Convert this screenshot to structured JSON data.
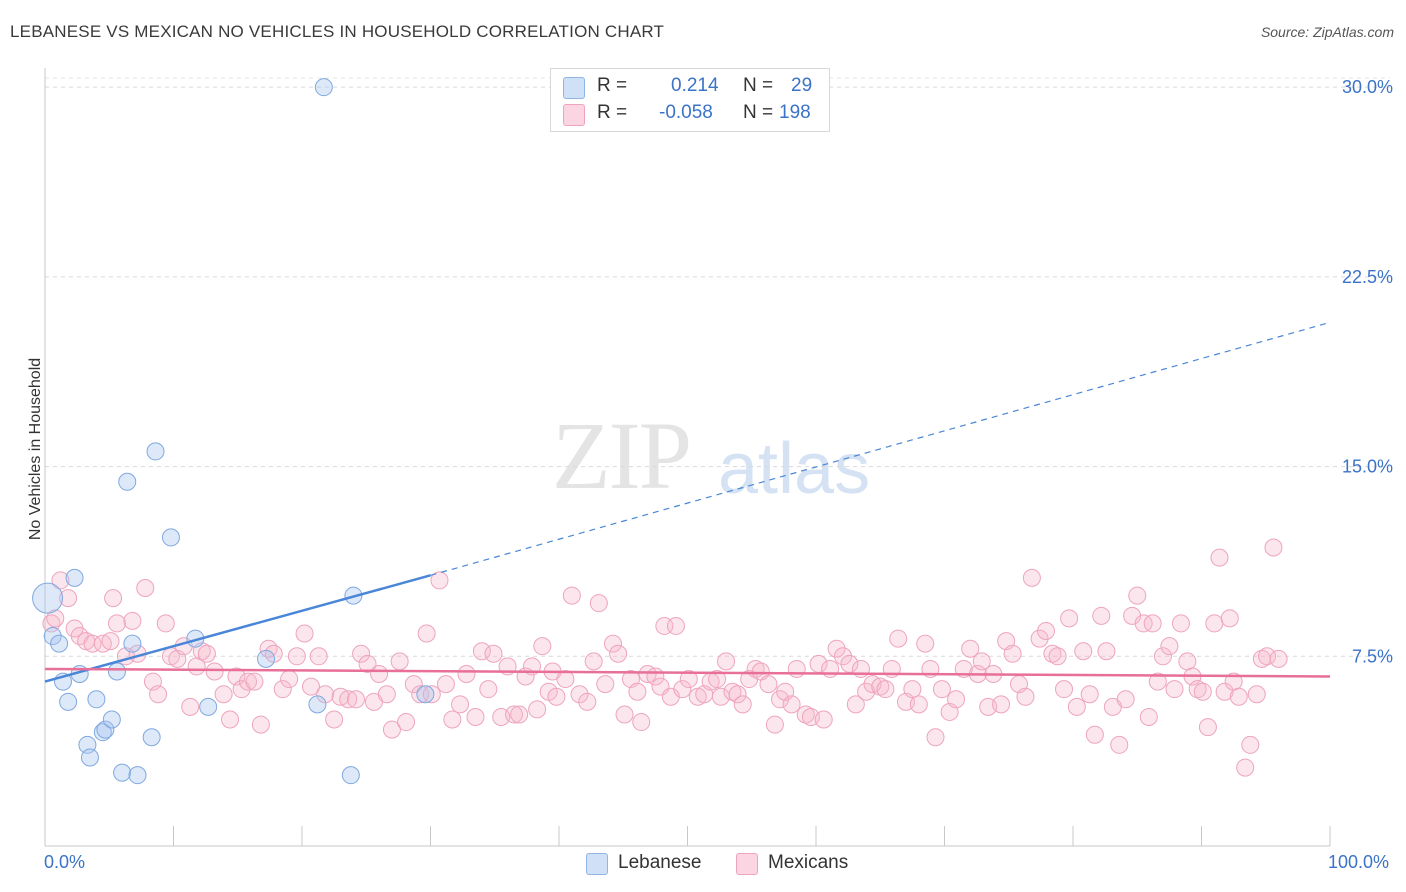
{
  "title": "LEBANESE VS MEXICAN NO VEHICLES IN HOUSEHOLD CORRELATION CHART",
  "source": "Source: ZipAtlas.com",
  "watermark": {
    "part1": "ZIP",
    "part2": "atlas"
  },
  "legend": {
    "rows": [
      {
        "r_label": "R =",
        "r_value": "0.214",
        "n_label": "N =",
        "n_value": "29",
        "color": "#a9c6f0"
      },
      {
        "r_label": "R =",
        "r_value": "-0.058",
        "n_label": "N =",
        "n_value": "198",
        "color": "#f6b8cc"
      }
    ]
  },
  "bottom_legend": [
    {
      "label": "Lebanese",
      "color": "#a9c6f0"
    },
    {
      "label": "Mexicans",
      "color": "#f6b8cc"
    }
  ],
  "chart_data": {
    "type": "scatter",
    "title": "LEBANESE VS MEXICAN NO VEHICLES IN HOUSEHOLD CORRELATION CHART",
    "xlabel": "",
    "ylabel": "No Vehicles in Household",
    "xlim": [
      0,
      100
    ],
    "ylim": [
      0,
      30.6
    ],
    "x_tick_labels": [
      "0.0%",
      "100.0%"
    ],
    "y_ticks": [
      7.5,
      15.0,
      22.5,
      30.0
    ],
    "y_tick_labels": [
      "7.5%",
      "15.0%",
      "22.5%",
      "30.0%"
    ],
    "grid": "horizontal dashed",
    "colors": {
      "lebanese": "#4a86d8",
      "mexicans": "#e86f98",
      "tick_label": "#3b73c8"
    },
    "series": [
      {
        "name": "Lebanese",
        "points": [
          [
            0.2,
            9.8
          ],
          [
            0.6,
            8.3
          ],
          [
            1.1,
            8.0
          ],
          [
            1.4,
            6.5
          ],
          [
            1.8,
            5.7
          ],
          [
            2.3,
            10.6
          ],
          [
            2.7,
            6.8
          ],
          [
            3.3,
            4.0
          ],
          [
            3.5,
            3.5
          ],
          [
            4.0,
            5.8
          ],
          [
            4.5,
            4.5
          ],
          [
            4.7,
            4.6
          ],
          [
            5.2,
            5.0
          ],
          [
            5.6,
            6.9
          ],
          [
            6.0,
            2.9
          ],
          [
            6.4,
            14.4
          ],
          [
            6.8,
            8.0
          ],
          [
            7.2,
            2.8
          ],
          [
            8.3,
            4.3
          ],
          [
            8.6,
            15.6
          ],
          [
            9.8,
            12.2
          ],
          [
            11.7,
            8.2
          ],
          [
            12.7,
            5.5
          ],
          [
            17.2,
            7.4
          ],
          [
            21.2,
            5.6
          ],
          [
            21.7,
            30.0
          ],
          [
            23.8,
            2.8
          ],
          [
            24.0,
            9.9
          ],
          [
            29.6,
            6.0
          ]
        ],
        "trend": {
          "x0": 0,
          "y0": 6.5,
          "x1": 30,
          "y1": 10.7,
          "dashed_to_x": 100,
          "dashed_to_y": 20.7
        }
      },
      {
        "name": "Mexicans",
        "points": [
          [
            0.5,
            8.8
          ],
          [
            0.8,
            9.0
          ],
          [
            1.2,
            10.5
          ],
          [
            1.8,
            9.8
          ],
          [
            2.3,
            8.6
          ],
          [
            2.7,
            8.3
          ],
          [
            3.2,
            8.1
          ],
          [
            3.7,
            8.0
          ],
          [
            4.5,
            8.0
          ],
          [
            5.1,
            8.1
          ],
          [
            5.3,
            9.8
          ],
          [
            5.6,
            8.8
          ],
          [
            6.3,
            7.5
          ],
          [
            6.8,
            8.9
          ],
          [
            7.2,
            7.6
          ],
          [
            7.8,
            10.2
          ],
          [
            8.4,
            6.5
          ],
          [
            8.8,
            6.0
          ],
          [
            9.4,
            8.8
          ],
          [
            9.8,
            7.5
          ],
          [
            10.3,
            7.4
          ],
          [
            10.8,
            7.9
          ],
          [
            11.3,
            5.5
          ],
          [
            11.8,
            7.1
          ],
          [
            12.2,
            7.7
          ],
          [
            12.6,
            7.6
          ],
          [
            13.2,
            6.9
          ],
          [
            13.9,
            6.0
          ],
          [
            14.4,
            5.0
          ],
          [
            14.9,
            6.7
          ],
          [
            15.3,
            6.2
          ],
          [
            15.8,
            6.5
          ],
          [
            16.3,
            6.5
          ],
          [
            16.8,
            4.8
          ],
          [
            17.4,
            7.8
          ],
          [
            17.8,
            7.6
          ],
          [
            18.5,
            6.2
          ],
          [
            19.0,
            6.6
          ],
          [
            19.6,
            7.5
          ],
          [
            20.2,
            8.4
          ],
          [
            20.7,
            6.3
          ],
          [
            21.3,
            7.5
          ],
          [
            21.8,
            6.0
          ],
          [
            22.5,
            5.0
          ],
          [
            23.0,
            5.9
          ],
          [
            23.6,
            5.8
          ],
          [
            24.2,
            5.8
          ],
          [
            24.6,
            7.6
          ],
          [
            25.1,
            7.2
          ],
          [
            25.6,
            5.7
          ],
          [
            26.0,
            6.8
          ],
          [
            26.6,
            6.0
          ],
          [
            27.0,
            4.6
          ],
          [
            27.6,
            7.3
          ],
          [
            28.1,
            4.9
          ],
          [
            28.7,
            6.4
          ],
          [
            29.2,
            6.0
          ],
          [
            29.7,
            8.4
          ],
          [
            30.1,
            6.0
          ],
          [
            30.7,
            10.5
          ],
          [
            31.2,
            6.4
          ],
          [
            31.7,
            5.0
          ],
          [
            32.3,
            5.6
          ],
          [
            32.8,
            6.8
          ],
          [
            33.5,
            5.1
          ],
          [
            34.0,
            7.7
          ],
          [
            34.5,
            6.2
          ],
          [
            34.9,
            7.6
          ],
          [
            35.5,
            5.1
          ],
          [
            36.0,
            7.1
          ],
          [
            36.5,
            5.2
          ],
          [
            36.9,
            5.2
          ],
          [
            37.4,
            6.7
          ],
          [
            37.9,
            7.1
          ],
          [
            38.3,
            5.4
          ],
          [
            38.7,
            7.9
          ],
          [
            39.2,
            6.1
          ],
          [
            39.5,
            6.9
          ],
          [
            39.8,
            5.9
          ],
          [
            40.5,
            6.6
          ],
          [
            41.0,
            9.9
          ],
          [
            41.6,
            6.0
          ],
          [
            42.2,
            5.7
          ],
          [
            42.7,
            7.3
          ],
          [
            43.1,
            9.6
          ],
          [
            43.6,
            6.4
          ],
          [
            44.2,
            8.0
          ],
          [
            44.6,
            7.6
          ],
          [
            45.1,
            5.2
          ],
          [
            45.6,
            6.6
          ],
          [
            46.1,
            6.1
          ],
          [
            46.4,
            4.9
          ],
          [
            46.9,
            6.8
          ],
          [
            47.5,
            6.7
          ],
          [
            47.9,
            6.3
          ],
          [
            48.2,
            8.7
          ],
          [
            48.7,
            5.9
          ],
          [
            49.1,
            8.7
          ],
          [
            49.6,
            6.2
          ],
          [
            50.1,
            6.6
          ],
          [
            50.8,
            5.9
          ],
          [
            51.3,
            6.0
          ],
          [
            51.8,
            6.5
          ],
          [
            52.3,
            6.6
          ],
          [
            52.6,
            5.9
          ],
          [
            53.0,
            7.3
          ],
          [
            53.5,
            6.1
          ],
          [
            53.9,
            6.0
          ],
          [
            54.3,
            5.6
          ],
          [
            54.8,
            6.6
          ],
          [
            55.3,
            7.0
          ],
          [
            55.7,
            6.9
          ],
          [
            56.3,
            6.4
          ],
          [
            56.8,
            4.8
          ],
          [
            57.2,
            5.8
          ],
          [
            57.6,
            6.1
          ],
          [
            58.1,
            5.6
          ],
          [
            58.5,
            7.0
          ],
          [
            59.2,
            5.2
          ],
          [
            59.6,
            5.1
          ],
          [
            60.2,
            7.2
          ],
          [
            60.6,
            5.0
          ],
          [
            61.1,
            7.0
          ],
          [
            61.6,
            7.8
          ],
          [
            62.1,
            7.5
          ],
          [
            62.6,
            7.2
          ],
          [
            63.1,
            5.6
          ],
          [
            63.5,
            7.0
          ],
          [
            63.9,
            6.1
          ],
          [
            64.4,
            6.4
          ],
          [
            65.0,
            6.3
          ],
          [
            65.4,
            6.2
          ],
          [
            65.9,
            7.0
          ],
          [
            66.4,
            8.2
          ],
          [
            67.0,
            5.7
          ],
          [
            67.5,
            6.2
          ],
          [
            68.0,
            5.6
          ],
          [
            68.5,
            8.0
          ],
          [
            68.9,
            7.0
          ],
          [
            69.3,
            4.3
          ],
          [
            69.8,
            6.2
          ],
          [
            70.4,
            5.3
          ],
          [
            70.9,
            5.8
          ],
          [
            71.5,
            7.0
          ],
          [
            72.0,
            7.8
          ],
          [
            72.6,
            6.8
          ],
          [
            72.9,
            7.3
          ],
          [
            73.4,
            5.5
          ],
          [
            73.8,
            6.8
          ],
          [
            74.4,
            5.6
          ],
          [
            74.8,
            8.1
          ],
          [
            75.3,
            7.6
          ],
          [
            75.8,
            6.4
          ],
          [
            76.3,
            5.9
          ],
          [
            76.8,
            10.6
          ],
          [
            77.4,
            8.2
          ],
          [
            77.9,
            8.5
          ],
          [
            78.4,
            7.6
          ],
          [
            78.8,
            7.5
          ],
          [
            79.3,
            6.2
          ],
          [
            79.7,
            9.0
          ],
          [
            80.3,
            5.5
          ],
          [
            80.8,
            7.7
          ],
          [
            81.3,
            6.0
          ],
          [
            81.7,
            4.4
          ],
          [
            82.2,
            9.1
          ],
          [
            82.6,
            7.7
          ],
          [
            83.1,
            5.5
          ],
          [
            83.6,
            4.0
          ],
          [
            84.1,
            5.8
          ],
          [
            84.6,
            9.1
          ],
          [
            85.0,
            9.9
          ],
          [
            85.5,
            8.8
          ],
          [
            85.9,
            5.1
          ],
          [
            86.2,
            8.8
          ],
          [
            86.6,
            6.5
          ],
          [
            87.0,
            7.5
          ],
          [
            87.5,
            7.9
          ],
          [
            87.9,
            6.2
          ],
          [
            88.4,
            8.8
          ],
          [
            88.9,
            7.3
          ],
          [
            89.3,
            6.7
          ],
          [
            89.7,
            6.2
          ],
          [
            90.1,
            6.1
          ],
          [
            90.5,
            4.7
          ],
          [
            91.0,
            8.8
          ],
          [
            91.4,
            11.4
          ],
          [
            91.8,
            6.1
          ],
          [
            92.2,
            9.0
          ],
          [
            92.5,
            6.5
          ],
          [
            92.9,
            5.9
          ],
          [
            93.4,
            3.1
          ],
          [
            93.8,
            4.0
          ],
          [
            94.3,
            6.0
          ],
          [
            94.7,
            7.4
          ],
          [
            95.1,
            7.5
          ],
          [
            95.6,
            11.8
          ],
          [
            96.0,
            7.4
          ]
        ],
        "trend": {
          "x0": 0,
          "y0": 7.0,
          "x1": 100,
          "y1": 6.7
        }
      }
    ]
  }
}
